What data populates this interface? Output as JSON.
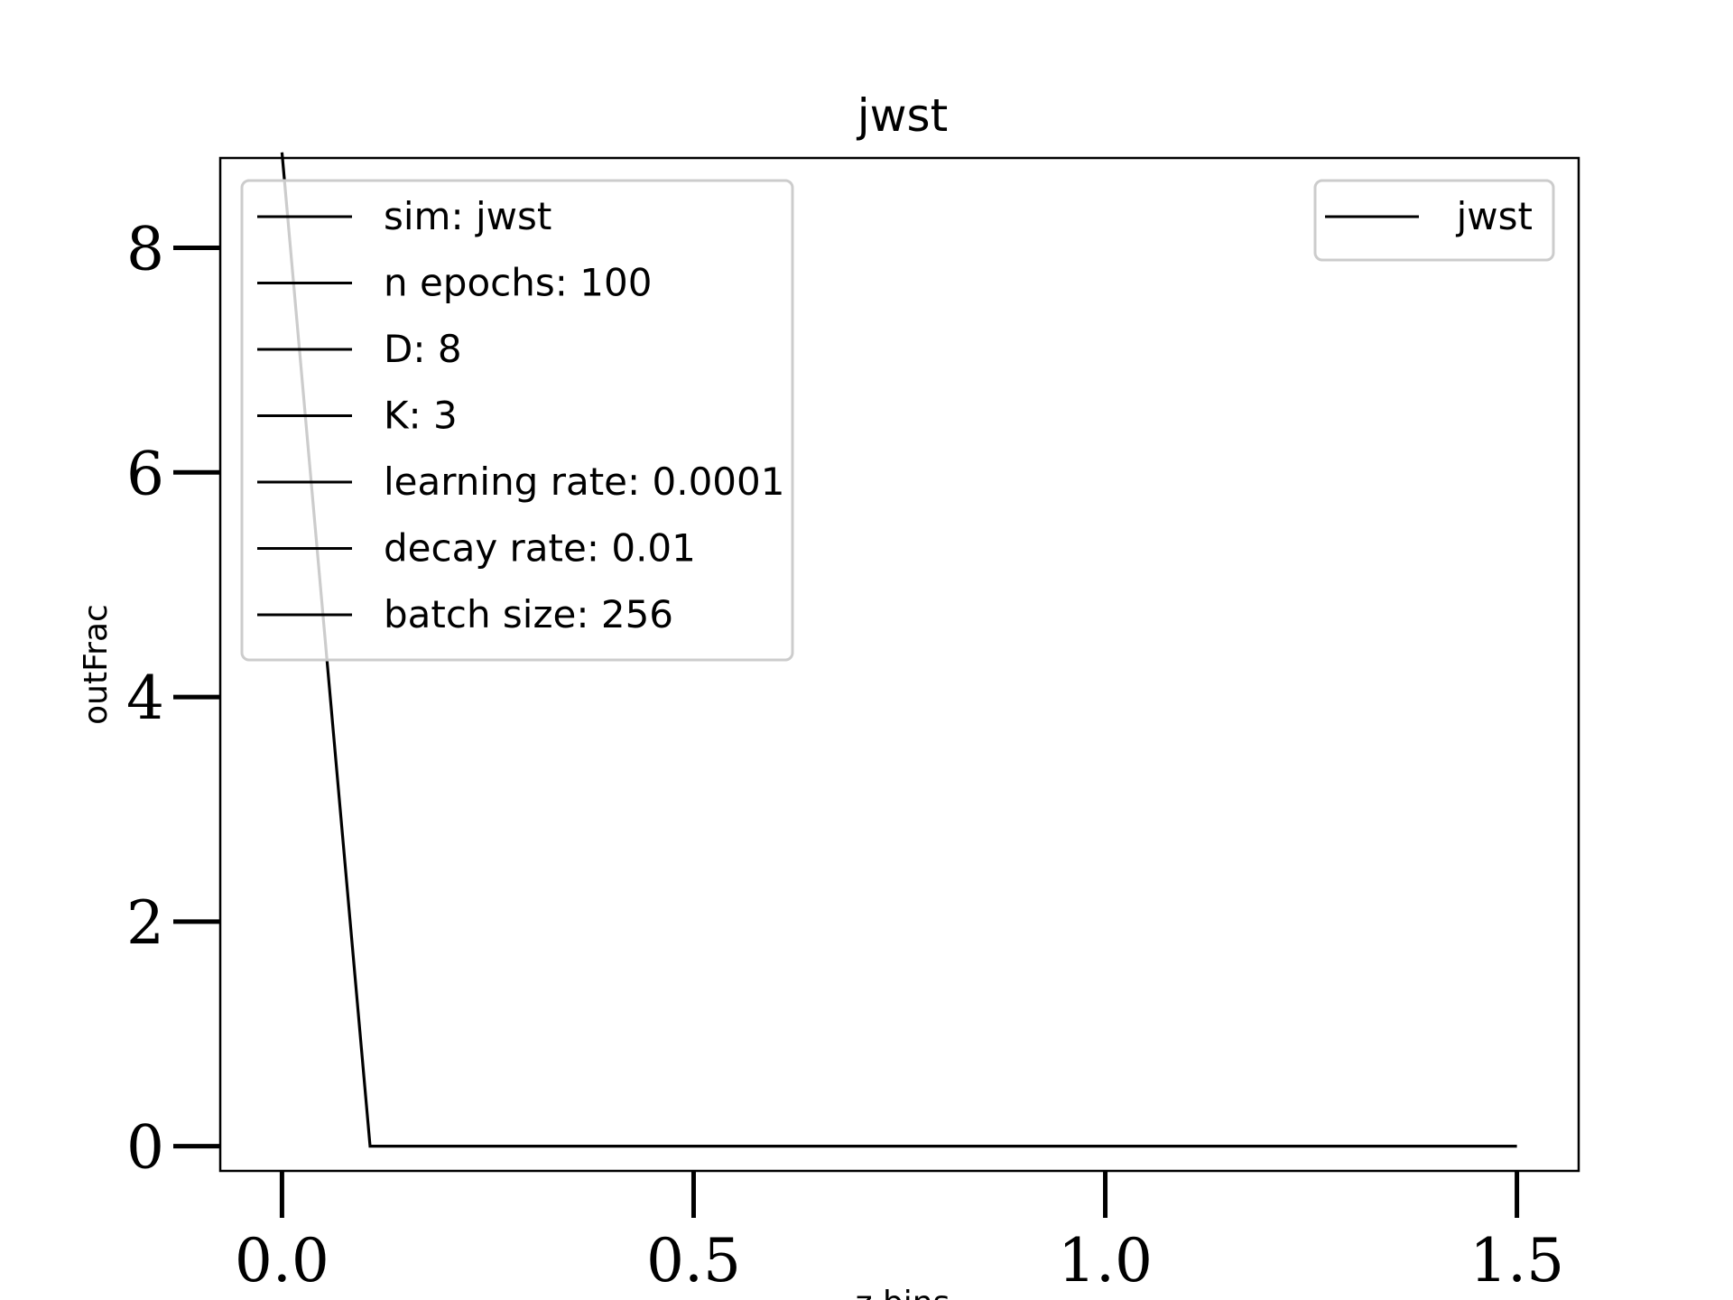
{
  "chart_data": {
    "type": "line",
    "title": "jwst",
    "xlabel": "z bins",
    "ylabel": "outFrac",
    "xlim": [
      -0.075,
      1.575
    ],
    "ylim": [
      -0.22,
      8.8
    ],
    "xticks": [
      0.0,
      0.5,
      1.0,
      1.5
    ],
    "xtick_labels": [
      "0.0",
      "0.5",
      "1.0",
      "1.5"
    ],
    "yticks": [
      0,
      2,
      4,
      6,
      8
    ],
    "ytick_labels": [
      "0",
      "2",
      "4",
      "6",
      "8"
    ],
    "grid": false,
    "series": [
      {
        "name": "jwst",
        "color": "#000000",
        "x": [
          0.0,
          0.107,
          0.2,
          0.3,
          0.4,
          0.5,
          0.6,
          0.7,
          0.8,
          0.9,
          1.0,
          1.1,
          1.2,
          1.3,
          1.4,
          1.5
        ],
        "y": [
          8.85,
          0,
          0,
          0,
          0,
          0,
          0,
          0,
          0,
          0,
          0,
          0,
          0,
          0,
          0,
          0
        ]
      }
    ],
    "params_legend": {
      "placement": "upper-left",
      "entries": [
        "sim: jwst",
        "n epochs: 100",
        "D: 8",
        "K: 3",
        "learning rate: 0.0001",
        "decay rate: 0.01",
        "batch size: 256"
      ]
    },
    "series_legend": {
      "placement": "upper-right",
      "entries": [
        "jwst"
      ]
    }
  }
}
